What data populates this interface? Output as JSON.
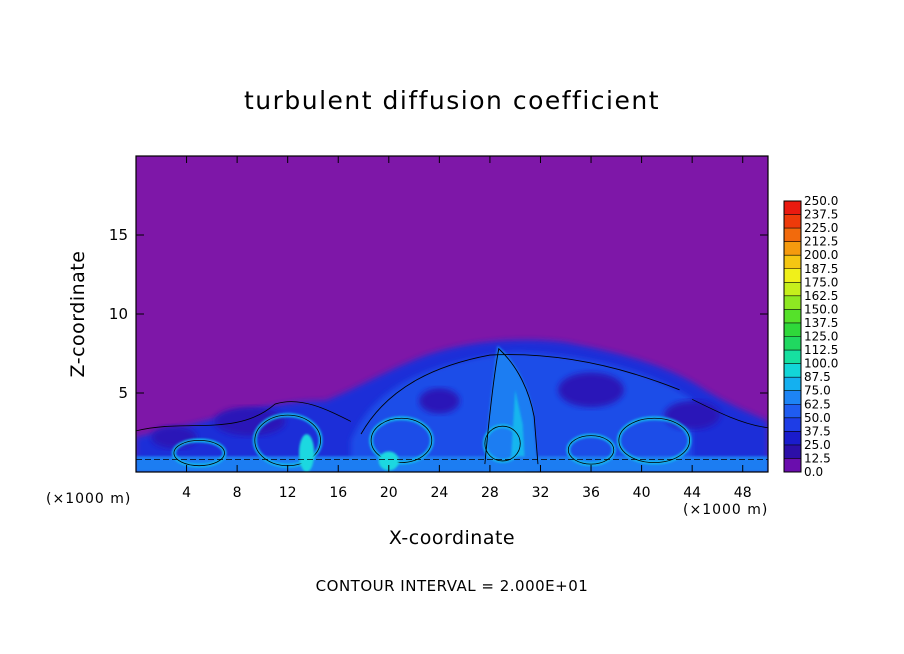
{
  "chart_data": {
    "type": "heatmap",
    "title": "turbulent diffusion coefficient",
    "xlabel": "X-coordinate",
    "ylabel": "Z-coordinate",
    "x_unit_left": "(×1000 m)",
    "x_unit_right": "(×1000 m)",
    "xlim": [
      0,
      50
    ],
    "ylim": [
      0,
      20
    ],
    "xticks": [
      4,
      8,
      12,
      16,
      20,
      24,
      28,
      32,
      36,
      40,
      44,
      48
    ],
    "yticks": [
      5,
      10,
      15
    ],
    "colorbar": {
      "levels": [
        "0.0",
        "12.5",
        "25.0",
        "37.5",
        "50.0",
        "62.5",
        "75.0",
        "87.5",
        "100.0",
        "112.5",
        "125.0",
        "137.5",
        "150.0",
        "162.5",
        "175.0",
        "187.5",
        "200.0",
        "212.5",
        "225.0",
        "237.5",
        "250.0"
      ],
      "colors": [
        "#6a0dad",
        "#2c0fa8",
        "#1a1ccc",
        "#1e3de6",
        "#1f5cf0",
        "#1d84f5",
        "#14b0f0",
        "#12d6d8",
        "#16e0a0",
        "#20d860",
        "#2fd83a",
        "#55e12a",
        "#8ee822",
        "#c6ef1c",
        "#f0f01a",
        "#f5c612",
        "#f59a0e",
        "#f26a0c",
        "#ee3a0a",
        "#ea1a10",
        "#f08080"
      ]
    },
    "contour_interval": "CONTOUR INTERVAL = 2.000E+01",
    "background_color": "#7e17a8",
    "field_description_regions": [
      {
        "x_range": [
          0,
          50
        ],
        "z_range": [
          0,
          1.5
        ],
        "level": "37.5"
      },
      {
        "x_range": [
          20,
          42
        ],
        "z_range": [
          1.5,
          7.5
        ],
        "level": "25.0"
      },
      {
        "x_range": [
          28,
          32
        ],
        "z_range": [
          0,
          8
        ],
        "level": "62.5"
      }
    ]
  },
  "footer_text": "CONTOUR INTERVAL = 2.000E+01"
}
